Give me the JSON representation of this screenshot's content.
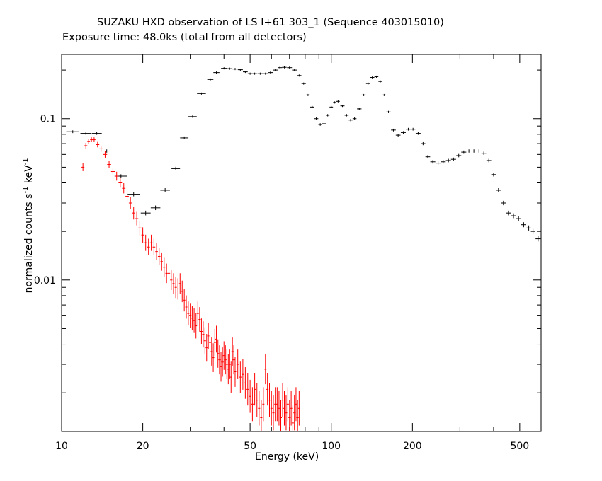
{
  "chart_data": {
    "type": "scatter",
    "title": "SUZAKU HXD observation of LS I+61 303_1 (Sequence 403015010)",
    "subtitle": "Exposure time: 48.0ks (total from all detectors)",
    "xlabel": "Energy (keV)",
    "ylabel": {
      "parts": [
        "normalized counts s",
        "-1",
        " keV",
        "-1"
      ]
    },
    "xscale": "log",
    "yscale": "log",
    "xlim": [
      10,
      600
    ],
    "ylim": [
      0.00115,
      0.25
    ],
    "x_ticks": [
      10,
      20,
      50,
      100,
      200,
      500
    ],
    "x_tick_labels": [
      "10",
      "20",
      "50",
      "100",
      "200",
      "500"
    ],
    "y_ticks": [
      0.1,
      0.01
    ],
    "y_tick_labels": [
      "0.1",
      "0.01"
    ],
    "series": [
      {
        "color": "#000000",
        "style": "crosses-with-errorbars",
        "points": [
          [
            11.0,
            0.083
          ],
          [
            12.3,
            0.081
          ],
          [
            13.5,
            0.081
          ],
          [
            14.7,
            0.063
          ],
          [
            16.6,
            0.044
          ],
          [
            18.5,
            0.034
          ],
          [
            20.5,
            0.026
          ],
          [
            22.3,
            0.028
          ],
          [
            24.2,
            0.036
          ],
          [
            26.5,
            0.049
          ],
          [
            28.5,
            0.076
          ],
          [
            30.6,
            0.103
          ],
          [
            33.0,
            0.143
          ],
          [
            35.6,
            0.175
          ],
          [
            37.5,
            0.193
          ],
          [
            40.0,
            0.205
          ],
          [
            42.0,
            0.204
          ],
          [
            44.0,
            0.203
          ],
          [
            46.0,
            0.201
          ],
          [
            48.0,
            0.195
          ],
          [
            50.0,
            0.19
          ],
          [
            52.0,
            0.19
          ],
          [
            54.5,
            0.19
          ],
          [
            57.0,
            0.19
          ],
          [
            59.5,
            0.193
          ],
          [
            62.0,
            0.2
          ],
          [
            64.5,
            0.207
          ],
          [
            67.0,
            0.208
          ],
          [
            70.0,
            0.207
          ],
          [
            73.0,
            0.2
          ],
          [
            76.0,
            0.185
          ],
          [
            79.0,
            0.165
          ],
          [
            82.0,
            0.14
          ],
          [
            85.0,
            0.118
          ],
          [
            88.0,
            0.1
          ],
          [
            91.0,
            0.092
          ],
          [
            94.0,
            0.093
          ],
          [
            97.0,
            0.105
          ],
          [
            100.0,
            0.118
          ],
          [
            103.0,
            0.126
          ],
          [
            106.0,
            0.128
          ],
          [
            110.0,
            0.12
          ],
          [
            114.0,
            0.105
          ],
          [
            118.0,
            0.098
          ],
          [
            122.0,
            0.1
          ],
          [
            127.0,
            0.115
          ],
          [
            132.0,
            0.14
          ],
          [
            137.0,
            0.165
          ],
          [
            142.0,
            0.18
          ],
          [
            147.0,
            0.182
          ],
          [
            152.0,
            0.17
          ],
          [
            157.0,
            0.14
          ],
          [
            163.0,
            0.11
          ],
          [
            170.0,
            0.085
          ],
          [
            177.0,
            0.079
          ],
          [
            185.0,
            0.082
          ],
          [
            193.0,
            0.086
          ],
          [
            201.0,
            0.086
          ],
          [
            210.0,
            0.081
          ],
          [
            219.0,
            0.07
          ],
          [
            228.0,
            0.058
          ],
          [
            238.0,
            0.054
          ],
          [
            249.0,
            0.053
          ],
          [
            260.0,
            0.054
          ],
          [
            272.0,
            0.055
          ],
          [
            284.0,
            0.056
          ],
          [
            297.0,
            0.059
          ],
          [
            310.0,
            0.062
          ],
          [
            324.0,
            0.063
          ],
          [
            338.0,
            0.063
          ],
          [
            353.0,
            0.063
          ],
          [
            368.0,
            0.061
          ],
          [
            384.0,
            0.055
          ],
          [
            400.0,
            0.045
          ],
          [
            417.0,
            0.036
          ],
          [
            435.0,
            0.03
          ],
          [
            454.0,
            0.026
          ],
          [
            474.0,
            0.025
          ],
          [
            495.0,
            0.024
          ],
          [
            517.0,
            0.022
          ],
          [
            540.0,
            0.021
          ],
          [
            560.0,
            0.02
          ],
          [
            585.0,
            0.018
          ]
        ]
      },
      {
        "color": "#ff0000",
        "style": "crosses-with-errorbars",
        "points": [
          [
            12.0,
            0.05
          ],
          [
            12.3,
            0.068
          ],
          [
            12.6,
            0.072
          ],
          [
            12.9,
            0.074
          ],
          [
            13.2,
            0.074
          ],
          [
            13.6,
            0.069
          ],
          [
            14.0,
            0.065
          ],
          [
            14.5,
            0.06
          ],
          [
            15.0,
            0.052
          ],
          [
            15.5,
            0.047
          ],
          [
            16.0,
            0.044
          ],
          [
            16.5,
            0.04
          ],
          [
            17.0,
            0.037
          ],
          [
            17.5,
            0.033
          ],
          [
            18.0,
            0.03
          ],
          [
            18.5,
            0.026
          ],
          [
            19.0,
            0.024
          ],
          [
            19.5,
            0.021
          ],
          [
            20.0,
            0.019
          ],
          [
            20.5,
            0.017
          ],
          [
            21.0,
            0.016
          ],
          [
            21.5,
            0.017
          ],
          [
            22.0,
            0.016
          ],
          [
            22.5,
            0.015
          ],
          [
            23.0,
            0.014
          ],
          [
            23.5,
            0.013
          ],
          [
            24.0,
            0.012
          ],
          [
            24.5,
            0.011
          ],
          [
            25.0,
            0.011
          ],
          [
            25.5,
            0.01
          ],
          [
            26.0,
            0.0095
          ],
          [
            26.5,
            0.009
          ],
          [
            27.0,
            0.0088
          ],
          [
            27.5,
            0.0095
          ],
          [
            28.0,
            0.0085
          ],
          [
            28.5,
            0.0075
          ],
          [
            29.0,
            0.0068
          ],
          [
            29.5,
            0.0062
          ],
          [
            30.0,
            0.006
          ],
          [
            30.5,
            0.0058
          ],
          [
            31.0,
            0.0056
          ],
          [
            31.5,
            0.0052
          ],
          [
            32.0,
            0.0062
          ],
          [
            32.5,
            0.0057
          ],
          [
            33.0,
            0.0048
          ],
          [
            33.5,
            0.0046
          ],
          [
            34.0,
            0.0042
          ],
          [
            34.5,
            0.0038
          ],
          [
            35.0,
            0.0045
          ],
          [
            35.5,
            0.0041
          ],
          [
            36.0,
            0.0036
          ],
          [
            36.5,
            0.0033
          ],
          [
            37.0,
            0.0041
          ],
          [
            37.5,
            0.0043
          ],
          [
            38.0,
            0.0035
          ],
          [
            38.5,
            0.0032
          ],
          [
            39.0,
            0.0029
          ],
          [
            39.5,
            0.0031
          ],
          [
            40.0,
            0.0034
          ],
          [
            40.5,
            0.0032
          ],
          [
            41.0,
            0.003
          ],
          [
            41.5,
            0.0028
          ],
          [
            42.0,
            0.003
          ],
          [
            42.5,
            0.0025
          ],
          [
            43.0,
            0.0036
          ],
          [
            43.5,
            0.0032
          ],
          [
            44.0,
            0.0027
          ],
          [
            45.0,
            0.003
          ],
          [
            46.0,
            0.0025
          ],
          [
            47.0,
            0.0026
          ],
          [
            48.0,
            0.0023
          ],
          [
            49.0,
            0.0021
          ],
          [
            50.0,
            0.0019
          ],
          [
            51.0,
            0.0017
          ],
          [
            52.0,
            0.0021
          ],
          [
            53.0,
            0.0018
          ],
          [
            54.0,
            0.0016
          ],
          [
            55.0,
            0.0014
          ],
          [
            56.0,
            0.0017
          ],
          [
            57.0,
            0.0028
          ],
          [
            58.0,
            0.0021
          ],
          [
            59.0,
            0.0018
          ],
          [
            60.0,
            0.0016
          ],
          [
            61.0,
            0.0015
          ],
          [
            62.0,
            0.0017
          ],
          [
            63.0,
            0.0017
          ],
          [
            64.0,
            0.0016
          ],
          [
            65.0,
            0.0014
          ],
          [
            66.0,
            0.0018
          ],
          [
            67.0,
            0.0016
          ],
          [
            68.0,
            0.0015
          ],
          [
            69.0,
            0.0017
          ],
          [
            70.0,
            0.0014
          ],
          [
            71.0,
            0.0016
          ],
          [
            72.0,
            0.0013
          ],
          [
            73.0,
            0.0015
          ],
          [
            74.0,
            0.0017
          ],
          [
            75.0,
            0.0014
          ],
          [
            76.0,
            0.0016
          ]
        ]
      }
    ]
  }
}
